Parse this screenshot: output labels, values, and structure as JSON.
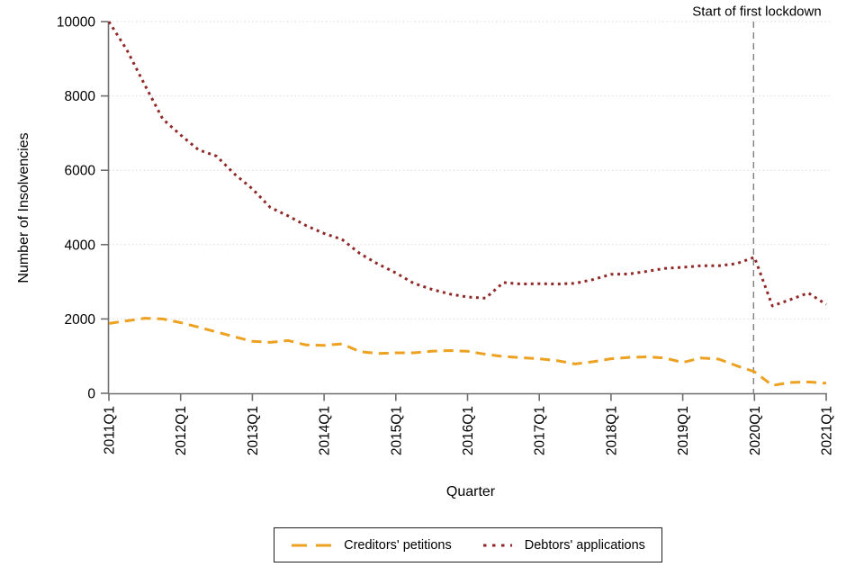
{
  "figure": {
    "ylabel": "Number of Insolvencies",
    "xlabel": "Quarter",
    "annotation": "Start of first lockdown"
  },
  "legend": {
    "items": [
      {
        "label": "Creditors' petitions",
        "color": "#EDA120",
        "pattern": "dashed"
      },
      {
        "label": "Debtors' applications",
        "color": "#902828",
        "pattern": "dotted"
      }
    ]
  },
  "chart_data": {
    "type": "line",
    "title": "",
    "xlabel": "Quarter",
    "ylabel": "Number of Insolvencies",
    "x": [
      "2011Q1",
      "2011Q2",
      "2011Q3",
      "2011Q4",
      "2012Q1",
      "2012Q2",
      "2012Q3",
      "2012Q4",
      "2013Q1",
      "2013Q2",
      "2013Q3",
      "2013Q4",
      "2014Q1",
      "2014Q2",
      "2014Q3",
      "2014Q4",
      "2015Q1",
      "2015Q2",
      "2015Q3",
      "2015Q4",
      "2016Q1",
      "2016Q2",
      "2016Q3",
      "2016Q4",
      "2017Q1",
      "2017Q2",
      "2017Q3",
      "2017Q4",
      "2018Q1",
      "2018Q2",
      "2018Q3",
      "2018Q4",
      "2019Q1",
      "2019Q2",
      "2019Q3",
      "2019Q4",
      "2020Q1",
      "2020Q2",
      "2020Q3",
      "2020Q4",
      "2021Q1"
    ],
    "x_tick_labels": [
      "2011Q1",
      "2012Q1",
      "2013Q1",
      "2014Q1",
      "2015Q1",
      "2016Q1",
      "2017Q1",
      "2018Q1",
      "2019Q1",
      "2020Q1",
      "2021Q1"
    ],
    "y_ticks": [
      0,
      2000,
      4000,
      6000,
      8000,
      10000
    ],
    "ylim": [
      0,
      10000
    ],
    "grid": "horizontal-dotted",
    "legend_position": "bottom",
    "series": [
      {
        "name": "Creditors' petitions",
        "color": "#EDA120",
        "style": "dashed",
        "values": [
          1880,
          1950,
          2020,
          2000,
          1900,
          1780,
          1650,
          1520,
          1400,
          1370,
          1420,
          1300,
          1290,
          1330,
          1120,
          1070,
          1090,
          1090,
          1130,
          1150,
          1130,
          1050,
          990,
          960,
          930,
          880,
          790,
          850,
          930,
          965,
          980,
          950,
          830,
          950,
          920,
          740,
          580,
          210,
          290,
          305,
          270
        ]
      },
      {
        "name": "Debtors' applications",
        "color": "#902828",
        "style": "dotted",
        "values": [
          10000,
          9240,
          8300,
          7380,
          6950,
          6550,
          6380,
          5900,
          5500,
          5000,
          4770,
          4510,
          4300,
          4140,
          3760,
          3480,
          3240,
          2960,
          2800,
          2670,
          2590,
          2560,
          2980,
          2940,
          2950,
          2940,
          2960,
          3060,
          3200,
          3210,
          3280,
          3360,
          3390,
          3430,
          3430,
          3490,
          3660,
          2350,
          2520,
          2700,
          2390
        ]
      }
    ],
    "vline": {
      "x": "2020Q1",
      "label": "Start of first lockdown",
      "color": "#808080",
      "style": "dashed"
    },
    "axis_color": "#6e6e6e",
    "gridline_color": "#d9d9d9"
  }
}
